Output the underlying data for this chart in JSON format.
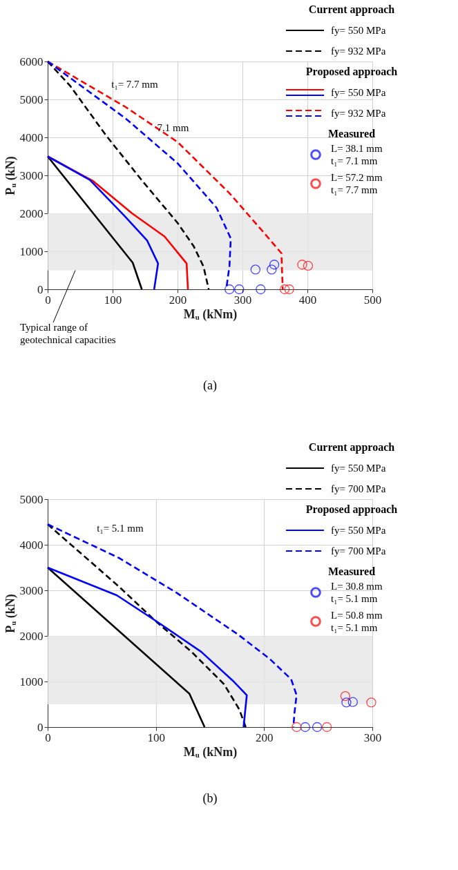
{
  "chart_data": [
    {
      "type": "line",
      "title": "(a)",
      "xlabel": "Mᵤ (kNm)",
      "ylabel": "Pᵤ (kN)",
      "xlim": [
        0,
        500
      ],
      "xticks": [
        0,
        100,
        200,
        300,
        400,
        500
      ],
      "ylim": [
        0,
        6000
      ],
      "yticks": [
        0,
        1000,
        2000,
        3000,
        4000,
        5000,
        6000
      ],
      "grid": true,
      "legend": "top right",
      "line_style": "solid",
      "marker": "none",
      "bands": [
        {
          "axis": "y",
          "from": 500,
          "to": 2000,
          "label": "Typical range of geotechnical capacities",
          "color": "#e6e6e6"
        }
      ],
      "annotations": [
        "Current approach",
        "Proposed approach",
        "Measured",
        {
          "text": "t₁= 7.7 mm",
          "x": 134,
          "y": 4640
        },
        {
          "text": "7.1 mm",
          "x": 193,
          "y": 3500
        }
      ],
      "series": [
        {
          "name": "fy= 550 MPa",
          "color": "#000000",
          "x": [
            0,
            131,
            145
          ],
          "values": [
            3500,
            700,
            0
          ]
        },
        {
          "name": "fy= 932 MPa",
          "color": "#000000",
          "line_style": "dashed",
          "x": [
            0,
            35,
            90,
            145,
            200,
            225,
            240,
            248
          ],
          "values": [
            6000,
            5350,
            4050,
            2870,
            1750,
            1130,
            600,
            0
          ]
        },
        {
          "name": "fy= 550 MPa",
          "color": "#ff0000",
          "x": [
            0,
            70,
            130,
            180,
            214,
            216
          ],
          "values": [
            3500,
            2850,
            2000,
            1390,
            680,
            0
          ]
        },
        {
          "color": "#0000ff",
          "x": [
            0,
            65,
            118,
            153,
            170,
            164
          ],
          "values": [
            3500,
            2880,
            1940,
            1290,
            680,
            0
          ]
        },
        {
          "name": "fy= 932 MPa",
          "color": "#ff0000",
          "line_style": "dashed",
          "x": [
            0,
            120,
            200,
            280,
            330,
            360,
            362
          ],
          "values": [
            6000,
            4800,
            3880,
            2530,
            1550,
            950,
            0
          ]
        },
        {
          "color": "#0000ff",
          "line_style": "dashed",
          "x": [
            0,
            120,
            200,
            260,
            282,
            280,
            275
          ],
          "values": [
            6000,
            4500,
            3320,
            2150,
            1340,
            620,
            0
          ]
        },
        {
          "type": "scatter",
          "marker": "circle",
          "name": "L= 38.1 mm\nt₁= 7.1 mm",
          "color": "#0000ff",
          "x": [
            280,
            295,
            328,
            320,
            345,
            349
          ],
          "values": [
            0,
            0,
            0,
            520,
            520,
            650
          ]
        },
        {
          "type": "scatter",
          "marker": "circle",
          "name": "L= 57.2 mm\nt₁= 7.7 mm",
          "color": "#ff0000",
          "x": [
            365,
            372,
            392,
            401
          ],
          "values": [
            0,
            0,
            650,
            620
          ]
        }
      ]
    },
    {
      "type": "line",
      "title": "(b)",
      "xlabel": "Mᵤ (kNm)",
      "ylabel": "Pᵤ (kN)",
      "xlim": [
        0,
        300
      ],
      "xticks": [
        0,
        100,
        200,
        300
      ],
      "ylim": [
        0,
        5000
      ],
      "yticks": [
        0,
        1000,
        2000,
        3000,
        4000,
        5000
      ],
      "grid": true,
      "legend": "top right",
      "line_style": "solid",
      "marker": "none",
      "bands": [
        {
          "axis": "y",
          "from": 500,
          "to": 2000,
          "color": "#e6e6e6"
        }
      ],
      "annotations": [
        "Current approach",
        "Proposed approach",
        "Measured",
        {
          "text": "t₁= 5.1 mm",
          "x": 67,
          "y": 3730
        }
      ],
      "series": [
        {
          "name": "fy= 550 MPa",
          "color": "#000000",
          "x": [
            0,
            131,
            145
          ],
          "values": [
            3500,
            730,
            0
          ]
        },
        {
          "name": "fy= 700 MPa",
          "color": "#000000",
          "line_style": "dashed",
          "x": [
            0,
            66,
            100,
            133,
            163,
            177,
            183
          ],
          "values": [
            4450,
            3080,
            2320,
            1650,
            940,
            390,
            0
          ]
        },
        {
          "name": "fy= 550 MPa",
          "color": "#0000ff",
          "x": [
            0,
            64,
            100,
            142,
            171,
            184,
            181
          ],
          "values": [
            3500,
            2890,
            2330,
            1650,
            1020,
            700,
            0
          ]
        },
        {
          "name": "fy= 700 MPa",
          "color": "#0000ff",
          "line_style": "dashed",
          "x": [
            0,
            66,
            119,
            176,
            205,
            225,
            230,
            228,
            227
          ],
          "values": [
            4450,
            3710,
            2950,
            2030,
            1500,
            1050,
            700,
            300,
            0
          ]
        },
        {
          "type": "scatter",
          "marker": "circle",
          "name": "L= 30.8 mm\nt₁= 5.1 mm",
          "color": "#0000ff",
          "x": [
            238,
            249,
            276,
            282
          ],
          "values": [
            0,
            0,
            540,
            550
          ]
        },
        {
          "type": "scatter",
          "marker": "circle",
          "name": "L= 50.8  mm\nt₁= 5.1 mm",
          "color": "#ff0000",
          "x": [
            230,
            258,
            275,
            299
          ],
          "values": [
            0,
            0,
            680,
            540
          ]
        }
      ]
    }
  ]
}
